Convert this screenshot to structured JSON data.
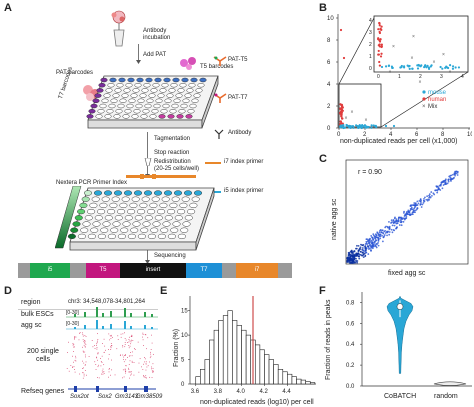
{
  "panel_labels": {
    "a": "A",
    "b": "B",
    "c": "C",
    "d": "D",
    "e": "E",
    "f": "F"
  },
  "panelA": {
    "antibody_incubation": "Antibody incubation",
    "add_pat": "Add PAT",
    "t5_barcodes": "T5 barcodes",
    "pat_barcodes": "PAT barcodes",
    "pat_t5": "PAT-T5",
    "pat_t7": "PAT-T7",
    "t7_barcodes": "T7 barcodes",
    "antibody": "Antibody",
    "tagmentation": "Tagmentation",
    "stop_reaction": "Stop reaction",
    "redistribution": "Redistribution",
    "redistribution_detail": "(20-25 cells/well)",
    "i7_primer": "i7 index primer",
    "i5_primer": "i5 index primer",
    "nextera": "Nextera PCR Primer Index",
    "sequencing": "Sequencing",
    "seq_segments": [
      "i5",
      "T5",
      "insert",
      "T7",
      "i7"
    ],
    "colors": {
      "i5": "#1fa84f",
      "T5": "#c2177e",
      "insert": "#111111",
      "T7": "#1e90d6",
      "i7": "#e8872a",
      "gray": "#9a9a9a"
    }
  },
  "panelB": {
    "xlabel": "non-duplicated reads per cell (x1,000)",
    "legend": [
      "mouse",
      "human",
      "Mix"
    ],
    "legend_colors": [
      "#2aa7d6",
      "#e03c3c",
      "#555555"
    ],
    "x_ticks": [
      "0",
      "2",
      "4",
      "6",
      "8",
      "10"
    ],
    "y_ticks": [
      "0",
      "2",
      "4",
      "6",
      "8",
      "10"
    ],
    "inset_x_ticks": [
      "0",
      "1",
      "2",
      "3",
      "4"
    ],
    "inset_y_ticks": [
      "0",
      "1",
      "2",
      "3",
      "4"
    ]
  },
  "panelC": {
    "xlabel": "fixed agg sc",
    "ylabel": "native agg sc",
    "r_label": "r = 0.90"
  },
  "panelD": {
    "region_label": "region",
    "region_value": "chr3: 34,548,078-34,801,264",
    "bulk_label": "bulk ESCs",
    "bulk_range": "[0-30]",
    "agg_label": "agg sc",
    "agg_range": "[0-30]",
    "single_cells_label": "200 single cells",
    "refseq_label": "Refseq genes",
    "genes": [
      "Sox2ot",
      "Sox2",
      "Gm3143",
      "Gm38509"
    ]
  },
  "panelE": {
    "ylabel": "Fraction (%)",
    "xlabel": "non-duplicated reads (log10) per cell",
    "x_ticks": [
      "3.6",
      "3.8",
      "4.0",
      "4.2",
      "4.4"
    ],
    "y_ticks": [
      "0",
      "5",
      "10",
      "15"
    ]
  },
  "panelF": {
    "ylabel": "Fraction of reads in peaks",
    "categories": [
      "CoBATCH",
      "random"
    ],
    "y_ticks": [
      "0.0",
      "0.2",
      "0.4",
      "0.6",
      "0.8"
    ]
  },
  "chart_data": [
    {
      "type": "histogram",
      "title": "",
      "xlabel": "non-duplicated reads (log10) per cell",
      "ylabel": "Fraction (%)",
      "bin_start": 3.6,
      "bin_width": 0.04,
      "values": [
        1.5,
        3,
        5,
        9,
        11,
        13,
        14,
        15,
        13,
        12,
        11,
        10,
        9,
        8,
        7,
        6,
        5,
        4,
        3,
        2.5,
        2,
        1.5,
        1,
        0.8,
        0.5,
        0.3
      ],
      "vline": 4.1,
      "xlim": [
        3.55,
        4.65
      ],
      "ylim": [
        0,
        18
      ]
    },
    {
      "type": "violin",
      "xlabel": "",
      "ylabel": "Fraction of reads in peaks",
      "categories": [
        "CoBATCH",
        "random"
      ],
      "medians": [
        0.76,
        0.03
      ],
      "ylim": [
        0,
        0.9
      ]
    }
  ]
}
